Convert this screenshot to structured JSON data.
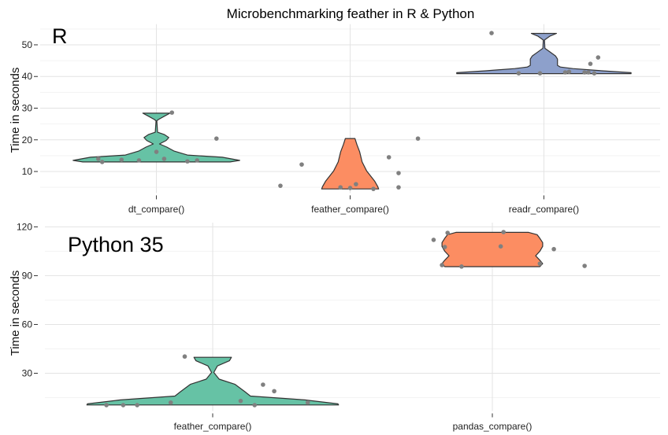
{
  "title": "Microbenchmarking feather in R & Python",
  "chart_data": [
    {
      "type": "violin",
      "panel_label": "R",
      "ylabel": "Time in seconds",
      "ylim": [
        3.2,
        56.5
      ],
      "yticks": [
        10,
        20,
        30,
        40,
        50
      ],
      "yminor": [
        5,
        15,
        25,
        35,
        45,
        55
      ],
      "categories": [
        "dt_compare()",
        "feather_compare()",
        "readr_compare()"
      ],
      "violins": [
        {
          "category": 0,
          "color": "#66c2a5",
          "profile": [
            [
              13.0,
              0.38
            ],
            [
              13.5,
              0.43
            ],
            [
              14.5,
              0.34
            ],
            [
              15.2,
              0.16
            ],
            [
              16.5,
              0.09
            ],
            [
              17.7,
              0.054
            ],
            [
              18.7,
              0.016
            ],
            [
              19.8,
              0.05
            ],
            [
              20.7,
              0.064
            ],
            [
              21.7,
              0.04
            ],
            [
              22.4,
              0.006
            ],
            [
              26.0,
              0.002
            ],
            [
              26.4,
              0.01
            ],
            [
              27.6,
              0.045
            ],
            [
              28.4,
              0.07
            ]
          ]
        },
        {
          "category": 1,
          "color": "#fc8d62",
          "profile": [
            [
              4.5,
              0.147
            ],
            [
              5.3,
              0.142
            ],
            [
              7.0,
              0.126
            ],
            [
              10.2,
              0.085
            ],
            [
              13.0,
              0.062
            ],
            [
              16.2,
              0.049
            ],
            [
              18.5,
              0.035
            ],
            [
              20.4,
              0.025
            ]
          ]
        },
        {
          "category": 2,
          "color": "#8da0cb",
          "profile": [
            [
              40.9,
              0.45
            ],
            [
              41.2,
              0.45
            ],
            [
              41.8,
              0.3
            ],
            [
              42.5,
              0.15
            ],
            [
              43.0,
              0.085
            ],
            [
              43.5,
              0.07
            ],
            [
              45.5,
              0.07
            ],
            [
              46.5,
              0.06
            ],
            [
              47.8,
              0.03
            ],
            [
              48.9,
              0.005
            ],
            [
              51.5,
              0.003
            ],
            [
              52.7,
              0.03
            ],
            [
              53.6,
              0.065
            ]
          ]
        }
      ],
      "points": [
        {
          "category": 0,
          "jitter": -0.3,
          "value": 14.0
        },
        {
          "category": 0,
          "jitter": -0.28,
          "value": 13.0
        },
        {
          "category": 0,
          "jitter": -0.18,
          "value": 13.7
        },
        {
          "category": 0,
          "jitter": -0.09,
          "value": 13.5
        },
        {
          "category": 0,
          "jitter": 0.0,
          "value": 16.2
        },
        {
          "category": 0,
          "jitter": 0.04,
          "value": 14.0
        },
        {
          "category": 0,
          "jitter": 0.16,
          "value": 13.2
        },
        {
          "category": 0,
          "jitter": 0.21,
          "value": 13.5
        },
        {
          "category": 0,
          "jitter": 0.08,
          "value": 28.6
        },
        {
          "category": 0,
          "jitter": 0.31,
          "value": 20.4
        },
        {
          "category": 1,
          "jitter": -0.36,
          "value": 5.5
        },
        {
          "category": 1,
          "jitter": -0.25,
          "value": 12.2
        },
        {
          "category": 1,
          "jitter": -0.05,
          "value": 5.0
        },
        {
          "category": 1,
          "jitter": 0.0,
          "value": 4.8
        },
        {
          "category": 1,
          "jitter": 0.03,
          "value": 6.0
        },
        {
          "category": 1,
          "jitter": 0.12,
          "value": 4.5
        },
        {
          "category": 1,
          "jitter": 0.2,
          "value": 14.5
        },
        {
          "category": 1,
          "jitter": 0.25,
          "value": 9.5
        },
        {
          "category": 1,
          "jitter": 0.25,
          "value": 5.0
        },
        {
          "category": 1,
          "jitter": 0.35,
          "value": 20.4
        },
        {
          "category": 2,
          "jitter": -0.27,
          "value": 53.7
        },
        {
          "category": 2,
          "jitter": -0.13,
          "value": 41.0
        },
        {
          "category": 2,
          "jitter": -0.02,
          "value": 41.0
        },
        {
          "category": 2,
          "jitter": 0.11,
          "value": 41.3
        },
        {
          "category": 2,
          "jitter": 0.13,
          "value": 41.5
        },
        {
          "category": 2,
          "jitter": 0.21,
          "value": 41.3
        },
        {
          "category": 2,
          "jitter": 0.23,
          "value": 41.3
        },
        {
          "category": 2,
          "jitter": 0.26,
          "value": 41.0
        },
        {
          "category": 2,
          "jitter": 0.24,
          "value": 44.0
        },
        {
          "category": 2,
          "jitter": 0.28,
          "value": 46.0
        }
      ]
    },
    {
      "type": "violin",
      "panel_label": "Python 35",
      "ylabel": "Time in seconds",
      "ylim": [
        6.8,
        122.6
      ],
      "yticks": [
        30,
        60,
        90,
        120
      ],
      "yminor": [
        15,
        45,
        75,
        105
      ],
      "categories": [
        "feather_compare()",
        "pandas_compare()"
      ],
      "violins": [
        {
          "category": 0,
          "color": "#66c2a5",
          "profile": [
            [
              10.5,
              0.45
            ],
            [
              11.2,
              0.448
            ],
            [
              13.6,
              0.33
            ],
            [
              16.0,
              0.135
            ],
            [
              18.7,
              0.115
            ],
            [
              23.2,
              0.08
            ],
            [
              26.4,
              0.023
            ],
            [
              30.5,
              0.004
            ],
            [
              34.5,
              0.017
            ],
            [
              37.7,
              0.06
            ],
            [
              39.8,
              0.067
            ]
          ]
        },
        {
          "category": 1,
          "color": "#fc8d62",
          "profile": [
            [
              95.5,
              0.17
            ],
            [
              97.4,
              0.18
            ],
            [
              99.5,
              0.17
            ],
            [
              102.2,
              0.155
            ],
            [
              105.0,
              0.17
            ],
            [
              108.0,
              0.18
            ],
            [
              110.3,
              0.18
            ],
            [
              113.0,
              0.17
            ],
            [
              115.2,
              0.16
            ],
            [
              116.6,
              0.13
            ]
          ]
        }
      ],
      "points": [
        {
          "category": 0,
          "jitter": -0.38,
          "value": 10.4
        },
        {
          "category": 0,
          "jitter": -0.32,
          "value": 10.4
        },
        {
          "category": 0,
          "jitter": -0.27,
          "value": 10.4
        },
        {
          "category": 0,
          "jitter": -0.15,
          "value": 12.0
        },
        {
          "category": 0,
          "jitter": -0.1,
          "value": 40.3
        },
        {
          "category": 0,
          "jitter": 0.1,
          "value": 13.0
        },
        {
          "category": 0,
          "jitter": 0.15,
          "value": 10.4
        },
        {
          "category": 0,
          "jitter": 0.18,
          "value": 23.0
        },
        {
          "category": 0,
          "jitter": 0.22,
          "value": 19.0
        },
        {
          "category": 0,
          "jitter": 0.34,
          "value": 12.0
        },
        {
          "category": 1,
          "jitter": -0.21,
          "value": 112.0
        },
        {
          "category": 1,
          "jitter": -0.16,
          "value": 116.3
        },
        {
          "category": 1,
          "jitter": 0.04,
          "value": 116.8
        },
        {
          "category": 1,
          "jitter": -0.17,
          "value": 107.6
        },
        {
          "category": 1,
          "jitter": 0.03,
          "value": 108.0
        },
        {
          "category": 1,
          "jitter": 0.22,
          "value": 106.3
        },
        {
          "category": 1,
          "jitter": -0.18,
          "value": 96.5
        },
        {
          "category": 1,
          "jitter": -0.11,
          "value": 95.6
        },
        {
          "category": 1,
          "jitter": 0.17,
          "value": 97.4
        },
        {
          "category": 1,
          "jitter": 0.33,
          "value": 96.0
        }
      ]
    }
  ]
}
